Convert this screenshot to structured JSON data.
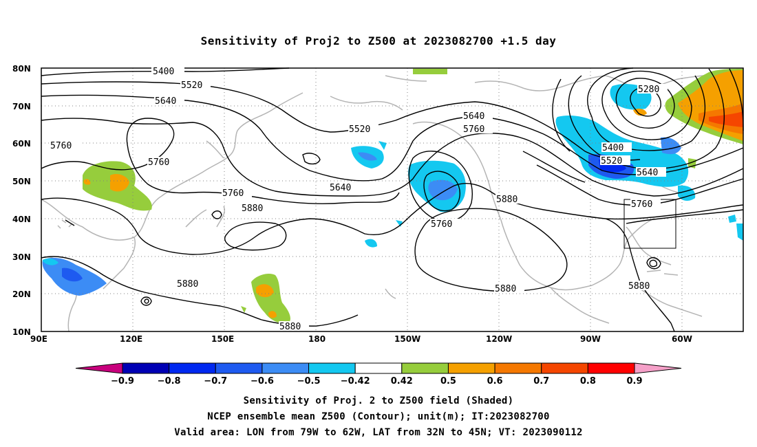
{
  "title": "Sensitivity of Proj2 to Z500 at 2023082700 +1.5 day",
  "latitudes": [
    "80N",
    "70N",
    "60N",
    "50N",
    "40N",
    "30N",
    "20N",
    "10N"
  ],
  "longitudes": [
    "90E",
    "120E",
    "150E",
    "180",
    "150W",
    "120W",
    "90W",
    "60W"
  ],
  "contour_labels": {
    "c5400a": "5400",
    "c5520a": "5520",
    "c5640a": "5640",
    "c5760a": "5760",
    "c5760b": "5760",
    "c5520b": "5520",
    "c5640b": "5640",
    "c5760c": "5760",
    "c5880a": "5880",
    "c5640c": "5640",
    "c5760d": "5760",
    "c5760e": "5760",
    "c5880b": "5880",
    "c5280": "5280",
    "c5400b": "5400",
    "c5520c": "5520",
    "c5640d": "5640",
    "c5760f": "5760",
    "c5880c": "5880",
    "c5880d": "5880",
    "c5880e": "5880",
    "c5880f": "5880"
  },
  "colorbar": {
    "labels": [
      "−0.9",
      "−0.8",
      "−0.7",
      "−0.6",
      "−0.5",
      "−0.42",
      "0.42",
      "0.5",
      "0.6",
      "0.7",
      "0.8",
      "0.9"
    ],
    "colors": [
      "#c8007d",
      "#0000b4",
      "#0028f0",
      "#1e5af0",
      "#3c8cf5",
      "#14c8f0",
      "#ffffff",
      "#96cd3c",
      "#f5a000",
      "#f57800",
      "#f54600",
      "#ff0000",
      "#f5a0c8"
    ]
  },
  "captions": {
    "line1": "Sensitivity of Proj. 2 to Z500 field (Shaded)",
    "line2": "NCEP ensemble mean Z500 (Contour); unit(m); IT:2023082700",
    "line3": "Valid area: LON from 79W to 62W, LAT from 32N to 45N; VT: 2023090112"
  }
}
